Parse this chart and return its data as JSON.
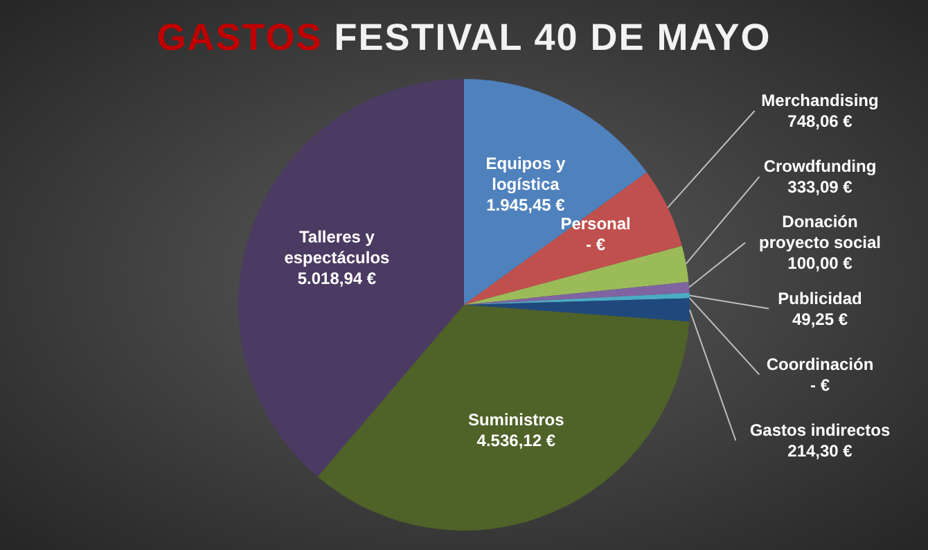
{
  "chart_data": {
    "type": "pie",
    "title": "GASTOS FESTIVAL 40 DE MAYO",
    "categories": [
      "Equipos y logística",
      "Personal",
      "Merchandising",
      "Crowdfunding",
      "Donación proyecto social",
      "Publicidad",
      "Coordinación",
      "Gastos indirectos",
      "Suministros",
      "Talleres y espectáculos"
    ],
    "values": [
      1945.45,
      0,
      748.06,
      333.09,
      100.0,
      49.25,
      0,
      214.3,
      4536.12,
      5018.94
    ],
    "value_labels": [
      "1.945,45 €",
      "-   €",
      "748,06 €",
      "333,09 €",
      "100,00 €",
      "49,25 €",
      "-   €",
      "214,30 €",
      "4.536,12 €",
      "5.018,94 €"
    ],
    "colors": [
      "#4f81bd",
      "#c0504d",
      "#c0504d",
      "#9bbb59",
      "#8064a2",
      "#4bacc6",
      "#f79646",
      "#1f497d",
      "#4f6228",
      "#4b3b62"
    ]
  }
}
